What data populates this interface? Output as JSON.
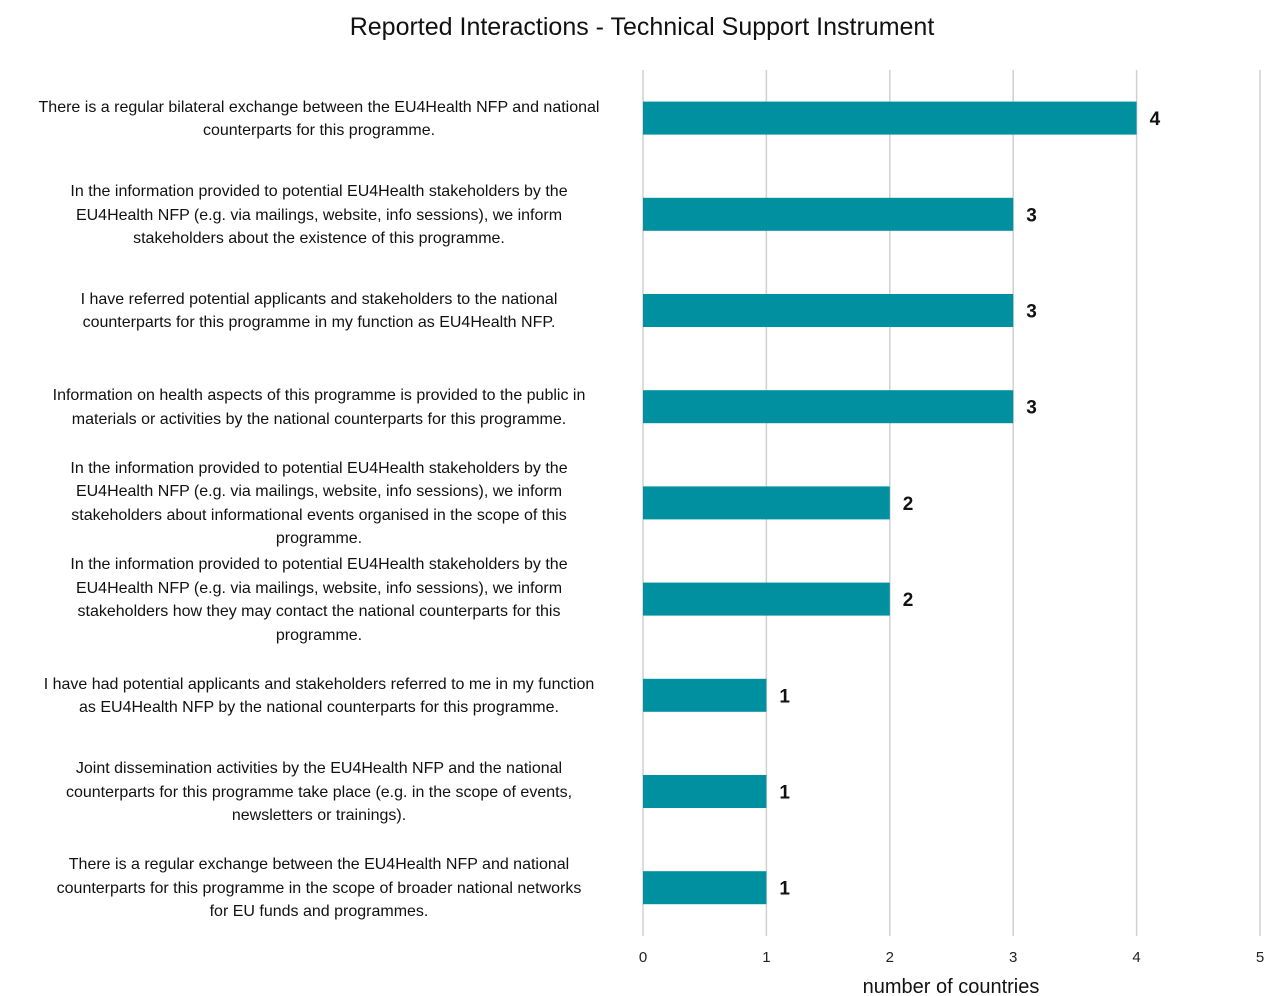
{
  "chart_data": {
    "type": "bar",
    "orientation": "horizontal",
    "title": "Reported Interactions - Technical Support Instrument",
    "xlabel": "number of countries",
    "ylabel": "",
    "xlim": [
      0,
      5
    ],
    "x_ticks": [
      "0",
      "1",
      "2",
      "3",
      "4",
      "5"
    ],
    "grid": true,
    "legend": "none",
    "bar_color": "#0090A0",
    "categories": [
      "There is a regular bilateral exchange between the EU4Health NFP and national counterparts for this programme.",
      "In the information provided to potential EU4Health stakeholders by the EU4Health NFP (e.g. via mailings, website, info sessions), we inform stakeholders about the existence of this programme.",
      "I have referred potential applicants and stakeholders to the national counterparts for this programme in my function as EU4Health NFP.",
      "Information on health aspects of this programme is provided to the public in materials or activities by the national counterparts for this programme.",
      "In the information provided to potential EU4Health stakeholders by the EU4Health NFP (e.g. via mailings, website, info sessions), we inform stakeholders about informational events organised in the scope of this programme.",
      "In the information provided to potential EU4Health stakeholders by the EU4Health NFP (e.g. via mailings, website, info sessions), we inform stakeholders how they may contact the national counterparts for this programme.",
      "I have had potential applicants and stakeholders referred to me in my function as EU4Health NFP by the national counterparts for this programme.",
      "Joint dissemination activities by the EU4Health NFP and the national counterparts for this programme take place (e.g. in the scope of events, newsletters or trainings).",
      "There is a regular exchange between the EU4Health NFP and national counterparts for this programme in the scope of broader national networks for EU funds and programmes."
    ],
    "label_lines": [
      [
        "There is a regular bilateral exchange between the EU4Health NFP and national",
        "counterparts for this programme."
      ],
      [
        "In the information provided to potential EU4Health stakeholders by the",
        "EU4Health NFP (e.g. via mailings, website, info sessions), we inform",
        "stakeholders about the existence of this programme."
      ],
      [
        "I have referred potential applicants and stakeholders to the national",
        "counterparts for this programme in my function as EU4Health NFP."
      ],
      [
        "Information on health aspects of this programme is provided to the public in",
        "materials or activities by the national counterparts for this programme."
      ],
      [
        "In the information provided to potential EU4Health stakeholders by the",
        "EU4Health NFP (e.g. via mailings, website, info sessions), we inform",
        "stakeholders about informational events organised in the scope of this",
        "programme."
      ],
      [
        "In the information provided to potential EU4Health stakeholders by the",
        "EU4Health NFP (e.g. via mailings, website, info sessions), we inform",
        "stakeholders how they may contact the national counterparts for this",
        "programme."
      ],
      [
        "I have had potential applicants and stakeholders referred to me in my function",
        "as EU4Health NFP by the national counterparts for this programme."
      ],
      [
        "Joint dissemination activities by the EU4Health NFP and the national",
        "counterparts for this programme take place (e.g. in the scope of events,",
        "newsletters or trainings)."
      ],
      [
        "There is a regular exchange between the EU4Health NFP and national",
        "counterparts for this programme in the scope of broader national networks",
        "for EU funds and programmes."
      ]
    ],
    "values": [
      4,
      3,
      3,
      3,
      2,
      2,
      1,
      1,
      1
    ],
    "data_labels": [
      "4",
      "3",
      "3",
      "3",
      "2",
      "2",
      "1",
      "1",
      "1"
    ]
  }
}
